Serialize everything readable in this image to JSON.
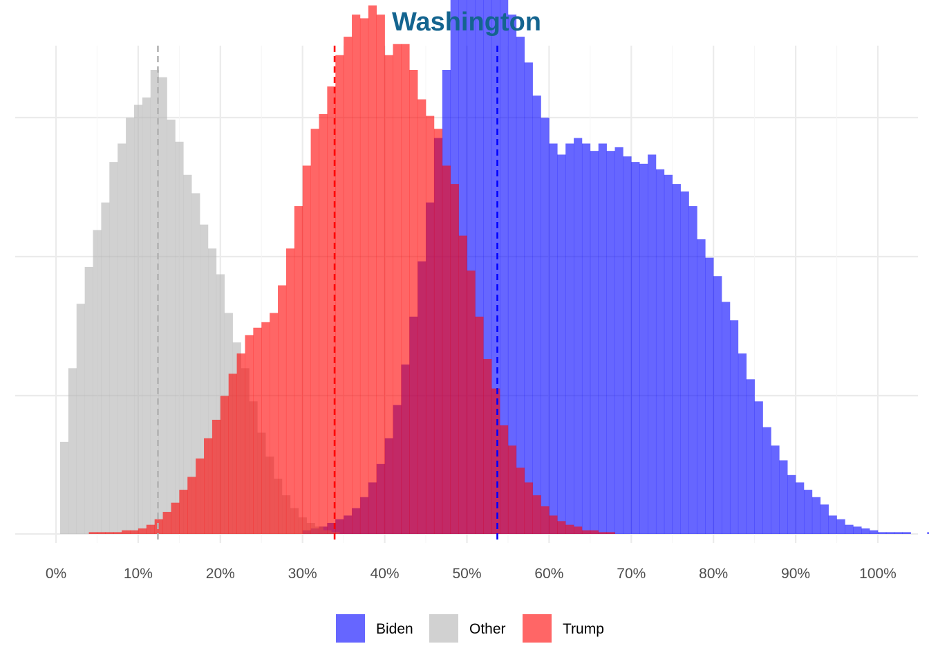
{
  "chart_data": {
    "type": "histogram",
    "title": "Washington",
    "title_color": "#14648f",
    "xlabel": "",
    "ylabel": "",
    "xlim": [
      -0.05,
      1.05
    ],
    "x_ticks": [
      0,
      0.1,
      0.2,
      0.3,
      0.4,
      0.5,
      0.6,
      0.7,
      0.8,
      0.9,
      1.0
    ],
    "x_tick_labels": [
      "0%",
      "10%",
      "20%",
      "30%",
      "40%",
      "50%",
      "60%",
      "70%",
      "80%",
      "90%",
      "100%"
    ],
    "y_axis_labels_shown": false,
    "grid": true,
    "bin_width": 0.01,
    "legend": {
      "position": "bottom",
      "items": [
        "Biden",
        "Other",
        "Trump"
      ]
    },
    "series": [
      {
        "name": "Biden",
        "color": "#0000ff",
        "opacity": 0.6,
        "mean": 0.537,
        "mean_line_color": "#0000ff",
        "bin_start": 0.3,
        "counts": [
          2,
          3,
          4,
          6,
          8,
          10,
          14,
          20,
          28,
          38,
          52,
          70,
          92,
          118,
          148,
          180,
          215,
          252,
          290,
          324,
          338,
          337,
          328,
          314,
          296,
          282,
          270,
          256,
          238,
          226,
          212,
          206,
          212,
          215,
          212,
          208,
          212,
          208,
          210,
          205,
          202,
          201,
          206,
          198,
          195,
          190,
          186,
          178,
          160,
          150,
          140,
          126,
          116,
          98,
          84,
          72,
          58,
          48,
          40,
          32,
          28,
          24,
          20,
          16,
          10,
          8,
          5,
          4,
          3,
          2,
          1,
          1,
          1,
          1,
          0,
          0,
          1,
          1
        ]
      },
      {
        "name": "Other",
        "color": "#b3b3b3",
        "opacity": 0.6,
        "mean": 0.124,
        "mean_line_color": "#b3b3b3",
        "bin_start": 0.005,
        "counts": [
          50,
          90,
          125,
          145,
          165,
          180,
          202,
          212,
          226,
          233,
          237,
          252,
          248,
          225,
          213,
          195,
          185,
          168,
          155,
          141,
          120,
          104,
          90,
          72,
          55,
          42,
          30,
          21,
          14,
          9,
          6,
          4,
          2,
          1
        ]
      },
      {
        "name": "Trump",
        "color": "#ff0000",
        "opacity": 0.6,
        "mean": 0.339,
        "mean_line_color": "#ff0000",
        "bin_start": 0.03,
        "counts": [
          0,
          1,
          1,
          1,
          1,
          2,
          2,
          3,
          5,
          8,
          12,
          17,
          24,
          31,
          41,
          52,
          62,
          75,
          87,
          98,
          108,
          112,
          115,
          120,
          135,
          155,
          178,
          200,
          220,
          228,
          243,
          260,
          270,
          282,
          280,
          287,
          282,
          260,
          266,
          266,
          252,
          236,
          227,
          220,
          200,
          190,
          162,
          143,
          118,
          95,
          79,
          59,
          48,
          36,
          28,
          21,
          15,
          10,
          7,
          5,
          4,
          2,
          2,
          1,
          1
        ]
      }
    ]
  }
}
